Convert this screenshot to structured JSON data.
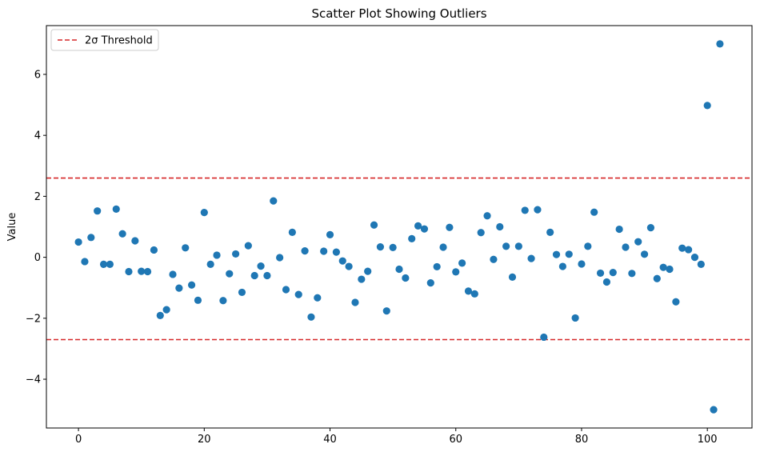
{
  "chart_data": {
    "type": "scatter",
    "title": "Scatter Plot Showing Outliers",
    "xlabel": "",
    "ylabel": "Value",
    "xlim": [
      -5.1,
      107.1
    ],
    "ylim": [
      -5.6,
      7.6
    ],
    "xticks": [
      0,
      20,
      40,
      60,
      80,
      100
    ],
    "yticks": [
      -4,
      -2,
      0,
      2,
      4,
      6
    ],
    "grid": false,
    "legend": {
      "position": "top-left",
      "entries": [
        "2σ Threshold"
      ]
    },
    "colors": {
      "points": "#1f77b4",
      "threshold": "#d62728"
    },
    "thresholds": [
      2.6,
      -2.7
    ],
    "series": [
      {
        "x": [
          0,
          1,
          2,
          3,
          4,
          5,
          6,
          7,
          8,
          9,
          10,
          11,
          12,
          13,
          14,
          15,
          16,
          17,
          18,
          19,
          20,
          21,
          22,
          23,
          24,
          25,
          26,
          27,
          28,
          29,
          30,
          31,
          32,
          33,
          34,
          35,
          36,
          37,
          38,
          39,
          40,
          41,
          42,
          43,
          44,
          45,
          46,
          47,
          48,
          49,
          50,
          51,
          52,
          53,
          54,
          55,
          56,
          57,
          58,
          59,
          60,
          61,
          62,
          63,
          64,
          65,
          66,
          67,
          68,
          69,
          70,
          71,
          72,
          73,
          74,
          75,
          76,
          77,
          78,
          79,
          80,
          81,
          82,
          83,
          84,
          85,
          86,
          87,
          88,
          89,
          90,
          91,
          92,
          93,
          94,
          95,
          96,
          97,
          98,
          99,
          100,
          101,
          102
        ],
        "y": [
          0.5,
          -0.14,
          0.65,
          1.52,
          -0.23,
          -0.23,
          1.58,
          0.77,
          -0.47,
          0.54,
          -0.46,
          -0.47,
          0.24,
          -1.91,
          -1.72,
          -0.56,
          -1.01,
          0.31,
          -0.91,
          -1.41,
          1.47,
          -0.23,
          0.07,
          -1.42,
          -0.54,
          0.11,
          -1.15,
          0.38,
          -0.6,
          -0.29,
          -0.6,
          1.85,
          -0.01,
          -1.06,
          0.82,
          -1.22,
          0.21,
          -1.96,
          -1.33,
          0.2,
          0.74,
          0.17,
          -0.12,
          -0.3,
          -1.48,
          -0.72,
          -0.46,
          1.06,
          0.34,
          -1.76,
          0.32,
          -0.39,
          -0.68,
          0.61,
          1.03,
          0.93,
          -0.84,
          -0.31,
          0.33,
          0.98,
          -0.48,
          -0.19,
          -1.11,
          -1.2,
          0.81,
          1.36,
          -0.07,
          1.0,
          0.36,
          -0.65,
          0.36,
          1.54,
          -0.04,
          1.56,
          -2.62,
          0.82,
          0.09,
          -0.3,
          0.1,
          -1.99,
          -0.22,
          0.36,
          1.48,
          -0.52,
          -0.81,
          -0.5,
          0.92,
          0.33,
          -0.53,
          0.51,
          0.1,
          0.97,
          -0.7,
          -0.33,
          -0.39,
          -1.46,
          0.3,
          0.25,
          0.0,
          -0.23,
          4.98,
          -5.0,
          7.0
        ]
      }
    ]
  }
}
